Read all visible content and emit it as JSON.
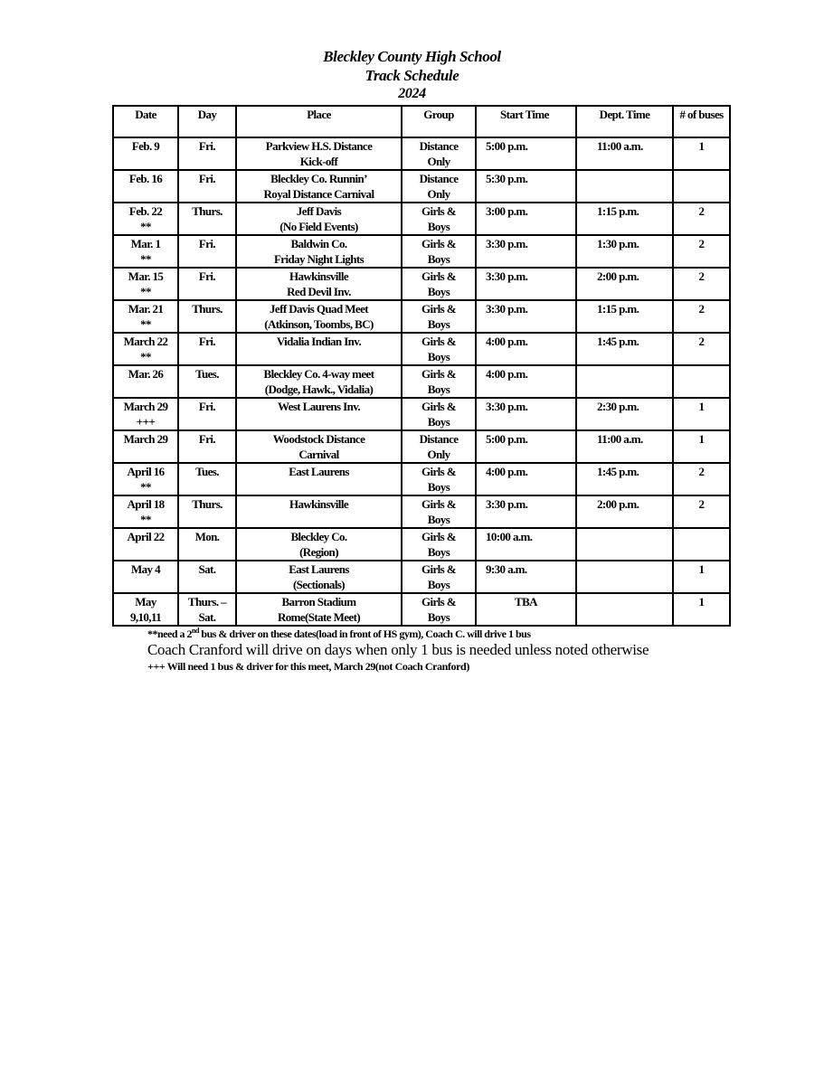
{
  "header": {
    "school": "Bleckley County High School",
    "title": "Track Schedule",
    "year": "2024"
  },
  "table": {
    "columns": [
      "Date",
      "Day",
      "Place",
      "Group",
      "Start Time",
      "Dept. Time",
      "# of buses"
    ],
    "rows": [
      {
        "date": "Feb. 9",
        "mark": "",
        "day": "Fri.",
        "place": [
          "Parkview H.S. Distance",
          "Kick-off"
        ],
        "group": [
          "Distance",
          "Only"
        ],
        "start": "5:00 p.m.",
        "dept": "11:00 a.m.",
        "buses": "1"
      },
      {
        "date": "Feb. 16",
        "mark": "",
        "day": "Fri.",
        "place": [
          "Bleckley Co. Runnin’",
          "Royal Distance Carnival"
        ],
        "group": [
          "Distance",
          "Only"
        ],
        "start": "5:30 p.m.",
        "dept": "",
        "buses": ""
      },
      {
        "date": "Feb. 22",
        "mark": "**",
        "day": "Thurs.",
        "place": [
          "Jeff Davis",
          "(No Field Events)"
        ],
        "group": [
          "Girls &",
          "Boys"
        ],
        "start": "3:00 p.m.",
        "dept": "1:15 p.m.",
        "buses": "2"
      },
      {
        "date": "Mar. 1",
        "mark": "**",
        "day": "Fri.",
        "place": [
          "Baldwin Co.",
          "Friday Night Lights"
        ],
        "group": [
          "Girls &",
          "Boys"
        ],
        "start": "3:30 p.m.",
        "dept": "1:30 p.m.",
        "buses": "2"
      },
      {
        "date": "Mar. 15",
        "mark": "**",
        "day": "Fri.",
        "place": [
          "Hawkinsville",
          "Red Devil Inv."
        ],
        "group": [
          "Girls &",
          "Boys"
        ],
        "start": "3:30 p.m.",
        "dept": "2:00 p.m.",
        "buses": "2"
      },
      {
        "date": "Mar. 21",
        "mark": "**",
        "day": "Thurs.",
        "place": [
          "Jeff Davis Quad Meet",
          "(Atkinson, Toombs, BC)"
        ],
        "group": [
          "Girls &",
          "Boys"
        ],
        "start": "3:30 p.m.",
        "dept": "1:15 p.m.",
        "buses": "2"
      },
      {
        "date": "March 22",
        "mark": "**",
        "day": "Fri.",
        "place": [
          "Vidalia Indian Inv.",
          ""
        ],
        "group": [
          "Girls &",
          "Boys"
        ],
        "start": "4:00 p.m.",
        "dept": "1:45 p.m.",
        "buses": "2"
      },
      {
        "date": "Mar. 26",
        "mark": "",
        "day": "Tues.",
        "place": [
          "Bleckley Co. 4-way meet",
          "(Dodge, Hawk., Vidalia)"
        ],
        "group": [
          "Girls &",
          "Boys"
        ],
        "start": "4:00 p.m.",
        "dept": "",
        "buses": ""
      },
      {
        "date": "March 29",
        "mark": "+++",
        "day": "Fri.",
        "place": [
          "West Laurens Inv.",
          ""
        ],
        "group": [
          "Girls &",
          "Boys"
        ],
        "start": "3:30 p.m.",
        "dept": "2:30 p.m.",
        "buses": "1"
      },
      {
        "date": "March 29",
        "mark": "",
        "day": "Fri.",
        "place": [
          "Woodstock Distance",
          "Carnival"
        ],
        "group": [
          "Distance",
          "Only"
        ],
        "start": "5:00 p.m.",
        "dept": "11:00 a.m.",
        "buses": "1"
      },
      {
        "date": "April 16",
        "mark": "**",
        "day": "Tues.",
        "place": [
          "East Laurens",
          ""
        ],
        "group": [
          "Girls &",
          "Boys"
        ],
        "start": "4:00 p.m.",
        "dept": "1:45 p.m.",
        "buses": "2"
      },
      {
        "date": "April 18",
        "mark": "**",
        "day": "Thurs.",
        "place": [
          "Hawkinsville",
          ""
        ],
        "group": [
          "Girls &",
          "Boys"
        ],
        "start": "3:30 p.m.",
        "dept": "2:00 p.m.",
        "buses": "2"
      },
      {
        "date": "April 22",
        "mark": "",
        "day": "Mon.",
        "place": [
          "Bleckley Co.",
          "(Region)"
        ],
        "group": [
          "Girls &",
          "Boys"
        ],
        "start": "10:00 a.m.",
        "dept": "",
        "buses": ""
      },
      {
        "date": "May 4",
        "mark": "",
        "day": "Sat.",
        "place": [
          "East Laurens",
          "(Sectionals)"
        ],
        "group": [
          "Girls &",
          "Boys"
        ],
        "start": "9:30 a.m.",
        "dept": "",
        "buses": "1"
      },
      {
        "date": "May",
        "mark": "9,10,11",
        "day": "Thurs. –",
        "day2": "Sat.",
        "place": [
          "Barron Stadium",
          "Rome(State Meet)"
        ],
        "group": [
          "Girls &",
          "Boys"
        ],
        "start": "TBA",
        "dept": "",
        "buses": "1"
      }
    ]
  },
  "notes": {
    "note1_prefix": "**need a 2",
    "note1_sup": "nd",
    "note1_suffix": " bus & driver on these dates(load in front of HS gym), Coach C. will drive 1 bus",
    "note2": "Coach Cranford will drive on days when only 1 bus is needed unless noted otherwise",
    "note3": "+++ Will need 1 bus & driver for this meet, March 29(not Coach Cranford)"
  }
}
